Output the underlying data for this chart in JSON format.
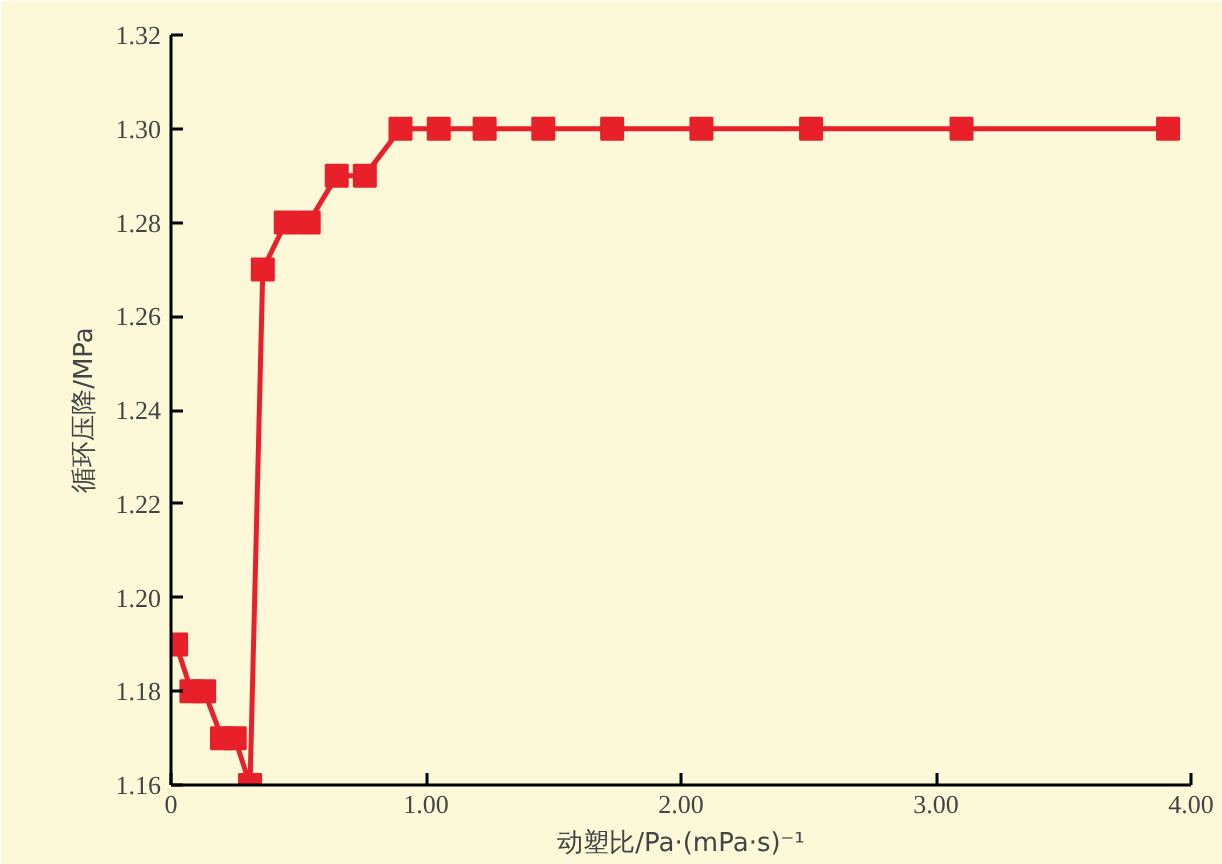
{
  "chart_data": {
    "type": "line",
    "xlabel": "动塑比/Pa·(mPa·s)⁻¹",
    "ylabel": "循环压降/MPa",
    "x": [
      0.02,
      0.08,
      0.13,
      0.2,
      0.25,
      0.31,
      0.36,
      0.45,
      0.54,
      0.65,
      0.76,
      0.9,
      1.05,
      1.23,
      1.46,
      1.73,
      2.08,
      2.51,
      3.1,
      3.91
    ],
    "series": [
      {
        "color": "#e8202a",
        "values": [
          1.19,
          1.18,
          1.18,
          1.17,
          1.17,
          1.16,
          1.27,
          1.28,
          1.28,
          1.29,
          1.29,
          1.3,
          1.3,
          1.3,
          1.3,
          1.3,
          1.3,
          1.3,
          1.3,
          1.3
        ]
      }
    ],
    "xlim": [
      0,
      4
    ],
    "xticks": [
      0,
      {
        "value": 1,
        "label": "1.00"
      },
      {
        "value": 2,
        "label": "2.00"
      },
      {
        "value": 3,
        "label": "3.00"
      },
      {
        "value": 4,
        "label": "4.00"
      }
    ],
    "ylim": [
      1.16,
      1.32
    ],
    "yticks": [
      1.16,
      1.18,
      {
        "value": 1.2,
        "label": "1.20"
      },
      1.22,
      1.24,
      1.26,
      1.28,
      {
        "value": 1.3,
        "label": "1.30"
      },
      1.32
    ],
    "marker": "square",
    "line_style": "solid",
    "grid": false
  }
}
